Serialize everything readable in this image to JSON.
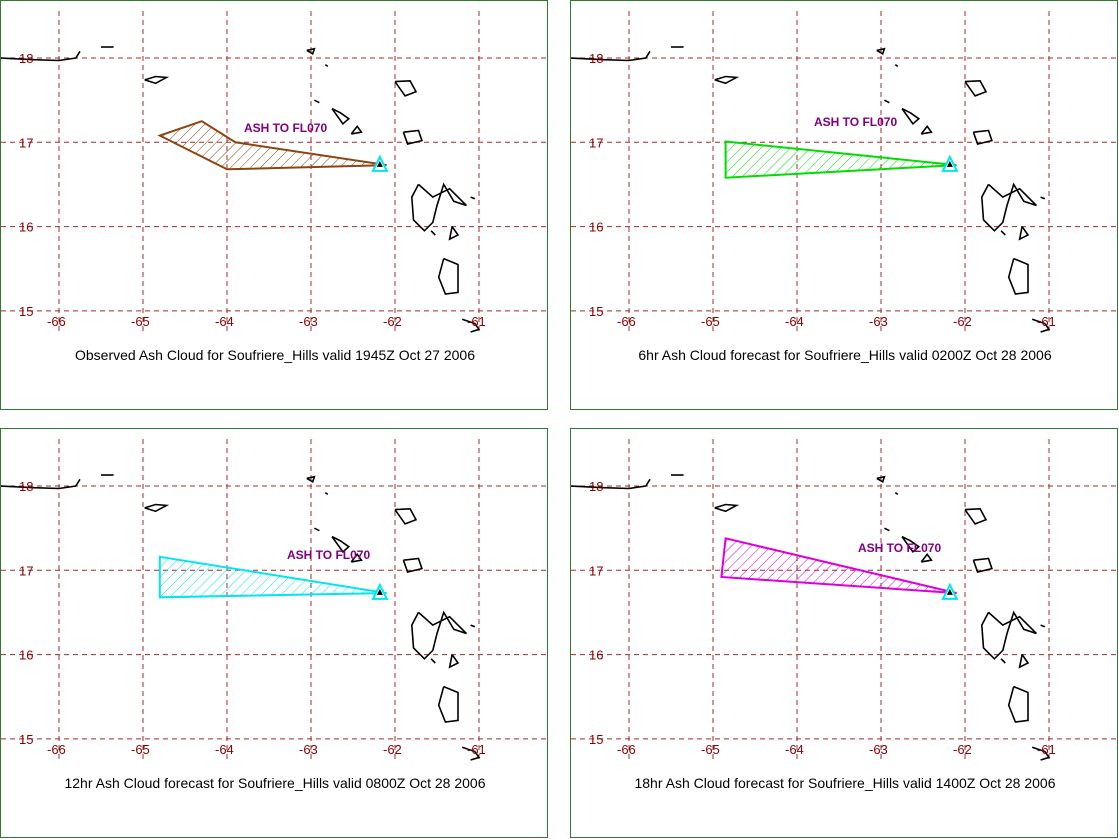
{
  "map": {
    "lon_range": [
      -66,
      -61
    ],
    "lat_range": [
      15,
      18
    ],
    "lon_ticks": [
      "-66",
      "-65",
      "-64",
      "-63",
      "-62",
      "-61"
    ],
    "lat_ticks": [
      "18",
      "17",
      "16",
      "15"
    ],
    "grid": "dashed",
    "grid_color": "#a52a2a",
    "coast_color": "#000000",
    "label_color": "#8b0000",
    "volcano_color": "#00e5ee"
  },
  "panels": [
    {
      "caption": "Observed Ash Cloud for Soufriere_Hills valid 1945Z Oct 27 2006",
      "annotation": "ASH TO FL070",
      "color": "#8b4513",
      "polygon": [
        [
          -64.8,
          17.08
        ],
        [
          -64.3,
          17.25
        ],
        [
          -63.9,
          17.0
        ],
        [
          -62.1,
          16.73
        ],
        [
          -64.0,
          16.68
        ]
      ]
    },
    {
      "caption": "6hr Ash Cloud forecast for Soufriere_Hills valid 0200Z Oct 28 2006",
      "annotation": "ASH TO FL070",
      "color": "#00dd00",
      "polygon": [
        [
          -64.85,
          17.01
        ],
        [
          -62.1,
          16.73
        ],
        [
          -64.85,
          16.58
        ]
      ]
    },
    {
      "caption": "12hr Ash Cloud forecast for Soufriere_Hills valid 0800Z Oct 28 2006",
      "annotation": "ASH TO FL070",
      "color": "#00e5ee",
      "polygon": [
        [
          -64.8,
          17.16
        ],
        [
          -62.1,
          16.73
        ],
        [
          -64.8,
          16.68
        ]
      ]
    },
    {
      "caption": "18hr Ash Cloud forecast for Soufriere_Hills valid 1400Z Oct 28 2006",
      "annotation": "ASH TO FL070",
      "color": "#dd00dd",
      "polygon": [
        [
          -64.85,
          17.38
        ],
        [
          -62.1,
          16.73
        ],
        [
          -64.9,
          16.92
        ]
      ]
    }
  ],
  "volcano": {
    "lon": -62.18,
    "lat": 16.72
  }
}
